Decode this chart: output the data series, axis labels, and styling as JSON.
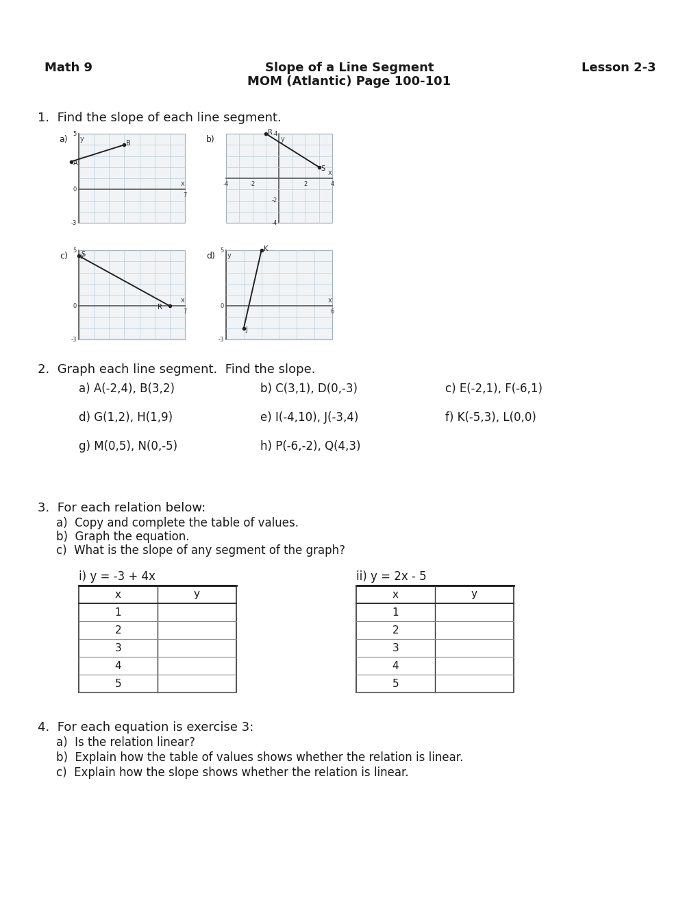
{
  "title_left": "Math 9",
  "title_center_line1": "Slope of a Line Segment",
  "title_center_line2": "MOM (Atlantic) Page 100-101",
  "title_right": "Lesson 2-3",
  "background_color": "#ffffff",
  "text_color": "#1a1a1a",
  "q1_text": "1.  Find the slope of each line segment.",
  "q2_text": "2.  Graph each line segment.  Find the slope.",
  "q2_items": [
    [
      "a) A(-2,4), B(3,2)",
      "b) C(3,1), D(0,-3)",
      "c) E(-2,1), F(-6,1)"
    ],
    [
      "d) G(1,2), H(1,9)",
      "e) I(-4,10), J(-3,4)",
      "f) K(-5,3), L(0,0)"
    ],
    [
      "g) M(0,5), N(0,-5)",
      "h) P(-6,-2), Q(4,3)",
      ""
    ]
  ],
  "q3_text": "3.  For each relation below:",
  "q3_sub": [
    "a)  Copy and complete the table of values.",
    "b)  Graph the equation.",
    "c)  What is the slope of any segment of the graph?"
  ],
  "q3_eq1": "i) y = -3 + 4x",
  "q3_eq2": "ii) y = 2x - 5",
  "q3_x_vals": [
    1,
    2,
    3,
    4,
    5
  ],
  "q4_text": "4.  For each equation is exercise 3:",
  "q4_sub": [
    "a)  Is the relation linear?",
    "b)  Explain how the table of values shows whether the relation is linear.",
    "c)  Explain how the slope shows whether the relation is linear."
  ],
  "grids": [
    {
      "label": "a)",
      "xmin": 0,
      "xmax": 7,
      "ymin": -3,
      "ymax": 5,
      "tick_x": [
        [
          7,
          "7"
        ]
      ],
      "tick_y": [
        [
          5,
          "5"
        ],
        [
          0,
          "0"
        ],
        [
          -3,
          "-3"
        ]
      ],
      "line": [
        [
          -0.5,
          2.5
        ],
        [
          3.0,
          4.0
        ]
      ],
      "points": [
        [
          -0.5,
          2.5,
          "A",
          3,
          2
        ],
        [
          3.0,
          4.0,
          "B",
          3,
          -2
        ]
      ]
    },
    {
      "label": "b)",
      "xmin": -4,
      "xmax": 4,
      "ymin": -4,
      "ymax": 4,
      "tick_x": [
        [
          -4,
          "-4"
        ],
        [
          -2,
          "-2"
        ],
        [
          2,
          "2"
        ],
        [
          4,
          "4"
        ]
      ],
      "tick_y": [
        [
          4,
          "4"
        ],
        [
          -2,
          "-2"
        ],
        [
          -4,
          "-4"
        ]
      ],
      "line": [
        [
          -1,
          4
        ],
        [
          3,
          1
        ]
      ],
      "points": [
        [
          -1,
          4,
          "R",
          3,
          -2
        ],
        [
          3,
          1,
          "S",
          3,
          2
        ]
      ]
    },
    {
      "label": "c)",
      "xmin": 0,
      "xmax": 7,
      "ymin": -3,
      "ymax": 5,
      "tick_x": [
        [
          7,
          "7"
        ]
      ],
      "tick_y": [
        [
          5,
          "5"
        ],
        [
          0,
          "0"
        ],
        [
          -3,
          "-3"
        ]
      ],
      "line": [
        [
          0,
          4.5
        ],
        [
          6,
          0
        ]
      ],
      "points": [
        [
          0,
          4.5,
          "S",
          3,
          -2
        ],
        [
          6,
          0,
          "R",
          -18,
          2
        ]
      ]
    },
    {
      "label": "d)",
      "xmin": 0,
      "xmax": 6,
      "ymin": -3,
      "ymax": 5,
      "tick_x": [
        [
          6,
          "6"
        ]
      ],
      "tick_y": [
        [
          5,
          "5"
        ],
        [
          0,
          "0"
        ],
        [
          -3,
          "-3"
        ]
      ],
      "line": [
        [
          2,
          5
        ],
        [
          1,
          -2
        ]
      ],
      "points": [
        [
          2,
          5,
          "K",
          3,
          -2
        ],
        [
          1,
          -2,
          "J",
          3,
          2
        ]
      ]
    }
  ],
  "grid_color": "#b8cdd8",
  "axis_color": "#555555",
  "line_color": "#222222"
}
